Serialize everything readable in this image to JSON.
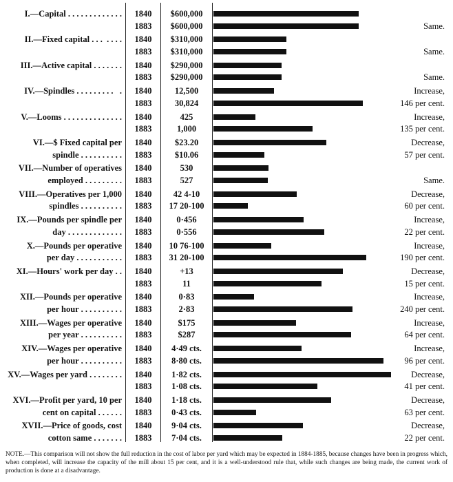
{
  "rows": [
    {
      "label": [
        "I.—Capital . . . . . . . . . . . . ."
      ],
      "years": [
        "1840",
        "1883"
      ],
      "values": [
        "$600,000",
        "$600,000"
      ],
      "bars": [
        211,
        211
      ],
      "change": [
        "Same."
      ]
    },
    {
      "label": [
        "II.—Fixed capital . . .  . . . ."
      ],
      "years": [
        "1840",
        "1883"
      ],
      "values": [
        "$310,000",
        "$310,000"
      ],
      "bars": [
        106,
        106
      ],
      "change": [
        "Same."
      ]
    },
    {
      "label": [
        "III.—Active capital . . . . . . ."
      ],
      "years": [
        "1840",
        "1883"
      ],
      "values": [
        "$290,000",
        "$290,000"
      ],
      "bars": [
        99,
        99
      ],
      "change": [
        "Same."
      ]
    },
    {
      "label": [
        "IV.—Spindles . . . . . . . . .   ."
      ],
      "years": [
        "1840",
        "1883"
      ],
      "values": [
        "12,500",
        "30,824"
      ],
      "bars": [
        88,
        217
      ],
      "change": [
        "Increase,",
        "146 per cent."
      ]
    },
    {
      "label": [
        "V.—Looms . . . . . . . . . . . . . ."
      ],
      "years": [
        "1840",
        "1883"
      ],
      "values": [
        "425",
        "1,000"
      ],
      "bars": [
        61,
        144
      ],
      "change": [
        "Increase,",
        "135 per cent."
      ]
    },
    {
      "label": [
        "VI.—$ Fixed capital per",
        "spindle . . . . . . . . . ."
      ],
      "years": [
        "1840",
        "1883"
      ],
      "values": [
        "$23.20",
        "$10.06"
      ],
      "bars": [
        164,
        74
      ],
      "change": [
        "Decrease,",
        "57 per cent."
      ]
    },
    {
      "label": [
        "VII.—Number of operatives",
        "employed . . . . . . . . ."
      ],
      "years": [
        "1840",
        "1883"
      ],
      "values": [
        "530",
        "527"
      ],
      "bars": [
        80,
        79
      ],
      "change": [
        "Same."
      ]
    },
    {
      "label": [
        "VIII.—Operatives per 1,000",
        "spindles . . . . . . . . . ."
      ],
      "years": [
        "1840",
        "1883"
      ],
      "values": [
        "42 4-10",
        "17 20-100"
      ],
      "bars": [
        121,
        50
      ],
      "change": [
        "Decrease,",
        "60 per cent."
      ]
    },
    {
      "label": [
        "IX.—Pounds per spindle per",
        "day . . . . . . . . . . . . ."
      ],
      "years": [
        "1840",
        "1883"
      ],
      "values": [
        "0·456",
        "0·556"
      ],
      "bars": [
        131,
        161
      ],
      "change": [
        "Increase,",
        "22 per cent."
      ]
    },
    {
      "label": [
        "X.—Pounds per operative",
        "per day . . . . . . . . . . ."
      ],
      "years": [
        "1840",
        "1883"
      ],
      "values": [
        "10 76-100",
        "31 20-100"
      ],
      "bars": [
        84,
        222
      ],
      "change": [
        "Increase,",
        "190 per cent."
      ]
    },
    {
      "label": [
        "XI.—Hours' work per day . ."
      ],
      "years": [
        "1840",
        "1883"
      ],
      "values": [
        "+13",
        "11"
      ],
      "bars": [
        188,
        157
      ],
      "change": [
        "Decrease,",
        "15 per cent."
      ]
    },
    {
      "label": [
        "XII.—Pounds per operative",
        "per hour . . . . . . . . . ."
      ],
      "years": [
        "1840",
        "1883"
      ],
      "values": [
        "0·83",
        "2·83"
      ],
      "bars": [
        59,
        202
      ],
      "change": [
        "Increase,",
        "240 per cent."
      ]
    },
    {
      "label": [
        "XIII.—Wages per operative",
        "per year . . . . . . . . . ."
      ],
      "years": [
        "1840",
        "1883"
      ],
      "values": [
        "$175",
        "$287"
      ],
      "bars": [
        120,
        200
      ],
      "change": [
        "Increase,",
        "64 per cent."
      ]
    },
    {
      "label": [
        "XIV.—Wages per operative",
        "per hour . . . . . . . . . ."
      ],
      "years": [
        "1840",
        "1883"
      ],
      "values": [
        "4·49 cts.",
        "8·80 cts."
      ],
      "bars": [
        128,
        247
      ],
      "change": [
        "Increase,",
        "96 per cent."
      ]
    },
    {
      "label": [
        "XV.—Wages per yard . . . . . . . ."
      ],
      "years": [
        "1840",
        "1883"
      ],
      "values": [
        "1·82 cts.",
        "1·08 cts."
      ],
      "bars": [
        258,
        151
      ],
      "change": [
        "Decrease,",
        "41 per cent."
      ]
    },
    {
      "label": [
        "XVI.—Profit per yard, 10 per",
        "cent on capital . . . . . ."
      ],
      "years": [
        "1840",
        "1883"
      ],
      "values": [
        "1·18 cts.",
        "0·43 cts."
      ],
      "bars": [
        171,
        62
      ],
      "change": [
        "Decrease,",
        "63 per cent."
      ]
    },
    {
      "label": [
        "XVII.—Price of goods, cost",
        "cotton same . . . . . . ."
      ],
      "years": [
        "1840",
        "1883"
      ],
      "values": [
        "9·04 cts.",
        "7·04 cts."
      ],
      "bars": [
        130,
        100
      ],
      "change": [
        "Decrease,",
        "22 per cent."
      ]
    }
  ],
  "note": "NOTE.—This comparison will not show the full reduction in the cost of labor per yard which may be expected in 1884-1885, because changes have been in progress which, when completed, will increase the capacity of the mill about 15 per cent, and it is a well-understood rule that, while such changes are being made, the current work of production is done at a disadvantage."
}
